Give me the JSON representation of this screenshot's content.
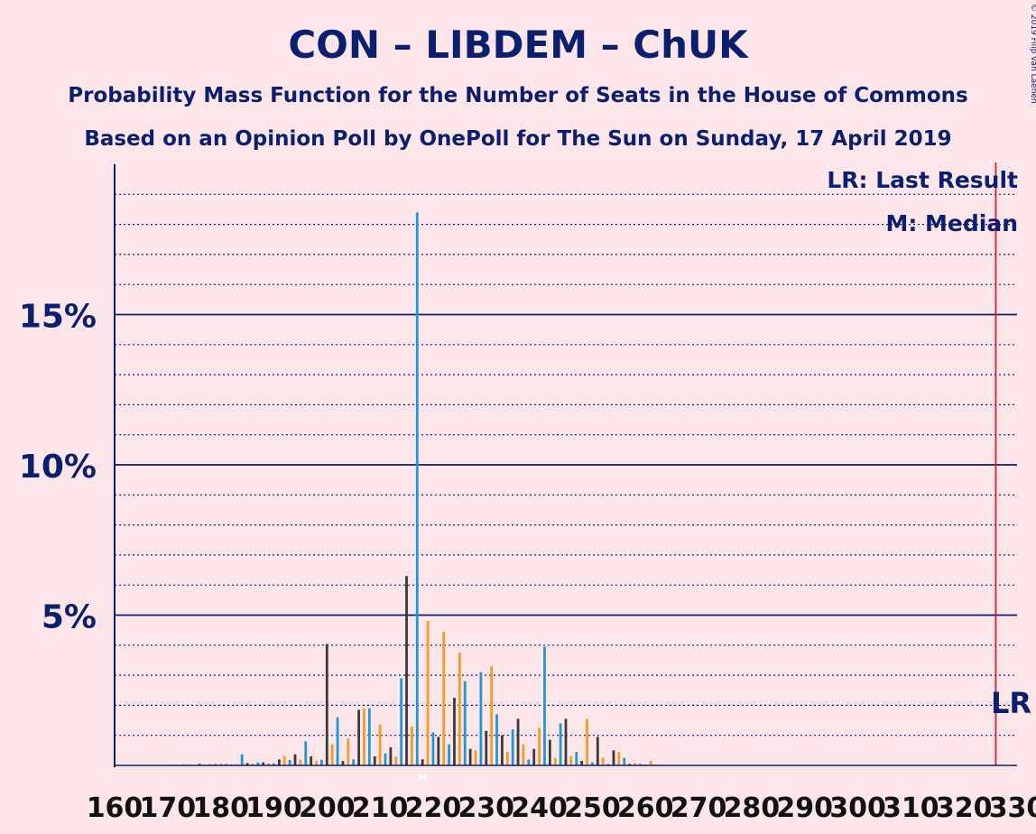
{
  "chart_data": {
    "type": "bar",
    "title": "CON – LIBDEM – ChUK",
    "subtitle": "Probability Mass Function for the Number of Seats in the House of Commons",
    "subtitle2": "Based on an Opinion Poll by OnePoll for The Sun on Sunday, 17 April 2019",
    "credit": "© 2019 Filip van Laenen",
    "legend_lr": "LR: Last Result",
    "legend_median": "M: Median",
    "lr_label": "LR",
    "median_label": "M",
    "last_result": 326,
    "median": 218,
    "xlim": [
      160,
      330
    ],
    "ylim": [
      0,
      0.2
    ],
    "x_ticks": [
      160,
      170,
      180,
      190,
      200,
      210,
      220,
      230,
      240,
      250,
      260,
      270,
      280,
      290,
      300,
      310,
      320,
      330
    ],
    "y_ticks": [
      {
        "value": 0.05,
        "label": "5%"
      },
      {
        "value": 0.1,
        "label": "10%"
      },
      {
        "value": 0.15,
        "label": "15%"
      }
    ],
    "colors": {
      "accent": "#0a1f6e",
      "lr_line": "#d2202f",
      "bar_orange": "#f39c28",
      "bar_blue": "#1f97d4",
      "bar_dark": "#3a3a3a",
      "background": "#fde6ea"
    },
    "series": [
      {
        "x": [
          171,
          173,
          174,
          176,
          177,
          178,
          179,
          180,
          181,
          182,
          183,
          184,
          185,
          186,
          187,
          188,
          189,
          190,
          191,
          192,
          193,
          194,
          195,
          196,
          197,
          198,
          199,
          200,
          201,
          202,
          203,
          204,
          205,
          206,
          207,
          208,
          209,
          210,
          211,
          212,
          213,
          214,
          215,
          216,
          217,
          218,
          219,
          220,
          221,
          222,
          223,
          224,
          225,
          226,
          227,
          228,
          229,
          230,
          231,
          232,
          233,
          234,
          235,
          236,
          237,
          238,
          239,
          240,
          241,
          242,
          243,
          244,
          245,
          246,
          247,
          248,
          249,
          250,
          251,
          252,
          253,
          254,
          255,
          256,
          257,
          258,
          259,
          260,
          261,
          262
        ],
        "values": [
          0.0002,
          0.0003,
          0.0003,
          0.0005,
          0.0003,
          0.0004,
          0.0004,
          0.0006,
          0.0005,
          0.0003,
          0.0004,
          0.0037,
          0.0008,
          0.0006,
          0.001,
          0.001,
          0.0007,
          0.0007,
          0.002,
          0.0031,
          0.0018,
          0.0037,
          0.0019,
          0.008,
          0.003,
          0.0015,
          0.0019,
          0.0404,
          0.007,
          0.016,
          0.0015,
          0.009,
          0.002,
          0.0185,
          0.019,
          0.019,
          0.003,
          0.0135,
          0.004,
          0.006,
          0.003,
          0.029,
          0.063,
          0.013,
          0.184,
          0.002,
          0.048,
          0.011,
          0.0095,
          0.0445,
          0.007,
          0.0225,
          0.0375,
          0.028,
          0.0055,
          0.005,
          0.031,
          0.0115,
          0.033,
          0.017,
          0.01,
          0.0045,
          0.012,
          0.0155,
          0.007,
          0.002,
          0.0055,
          0.0125,
          0.0395,
          0.0085,
          0.0025,
          0.014,
          0.0155,
          0.003,
          0.0045,
          0.0015,
          0.0155,
          0.001,
          0.0095,
          0.0025,
          0.0005,
          0.005,
          0.0045,
          0.0025,
          0.0005,
          0.0008,
          0.0005,
          0.0003,
          0.0015,
          0.0002
        ]
      }
    ]
  }
}
